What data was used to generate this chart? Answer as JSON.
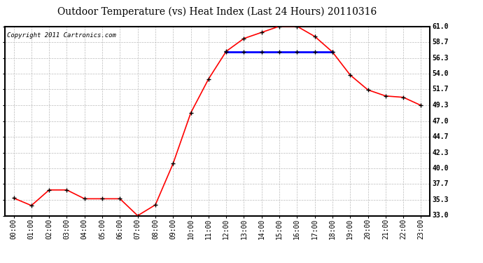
{
  "title": "Outdoor Temperature (vs) Heat Index (Last 24 Hours) 20110316",
  "copyright_text": "Copyright 2011 Cartronics.com",
  "x_labels": [
    "00:00",
    "01:00",
    "02:00",
    "03:00",
    "04:00",
    "05:00",
    "06:00",
    "07:00",
    "08:00",
    "09:00",
    "10:00",
    "11:00",
    "12:00",
    "13:00",
    "14:00",
    "15:00",
    "16:00",
    "17:00",
    "18:00",
    "19:00",
    "20:00",
    "21:00",
    "22:00",
    "23:00"
  ],
  "temp_values": [
    35.6,
    34.5,
    36.8,
    36.8,
    35.5,
    35.5,
    35.5,
    33.0,
    34.6,
    40.7,
    48.2,
    53.2,
    57.3,
    59.2,
    60.1,
    61.0,
    61.0,
    59.5,
    57.2,
    53.8,
    51.6,
    50.7,
    50.5,
    49.3
  ],
  "heat_index_values": [
    null,
    null,
    null,
    null,
    null,
    null,
    null,
    null,
    null,
    null,
    null,
    null,
    57.2,
    57.2,
    57.2,
    57.2,
    57.2,
    57.2,
    57.2,
    null,
    null,
    null,
    null,
    null
  ],
  "y_min": 33.0,
  "y_max": 61.0,
  "y_ticks": [
    33.0,
    35.3,
    37.7,
    40.0,
    42.3,
    44.7,
    47.0,
    49.3,
    51.7,
    54.0,
    56.3,
    58.7,
    61.0
  ],
  "temp_color": "#FF0000",
  "heat_index_color": "#0000FF",
  "marker_color": "#000000",
  "grid_color": "#BBBBBB",
  "bg_color": "#FFFFFF",
  "title_fontsize": 10,
  "axis_fontsize": 7,
  "copyright_fontsize": 6.5
}
